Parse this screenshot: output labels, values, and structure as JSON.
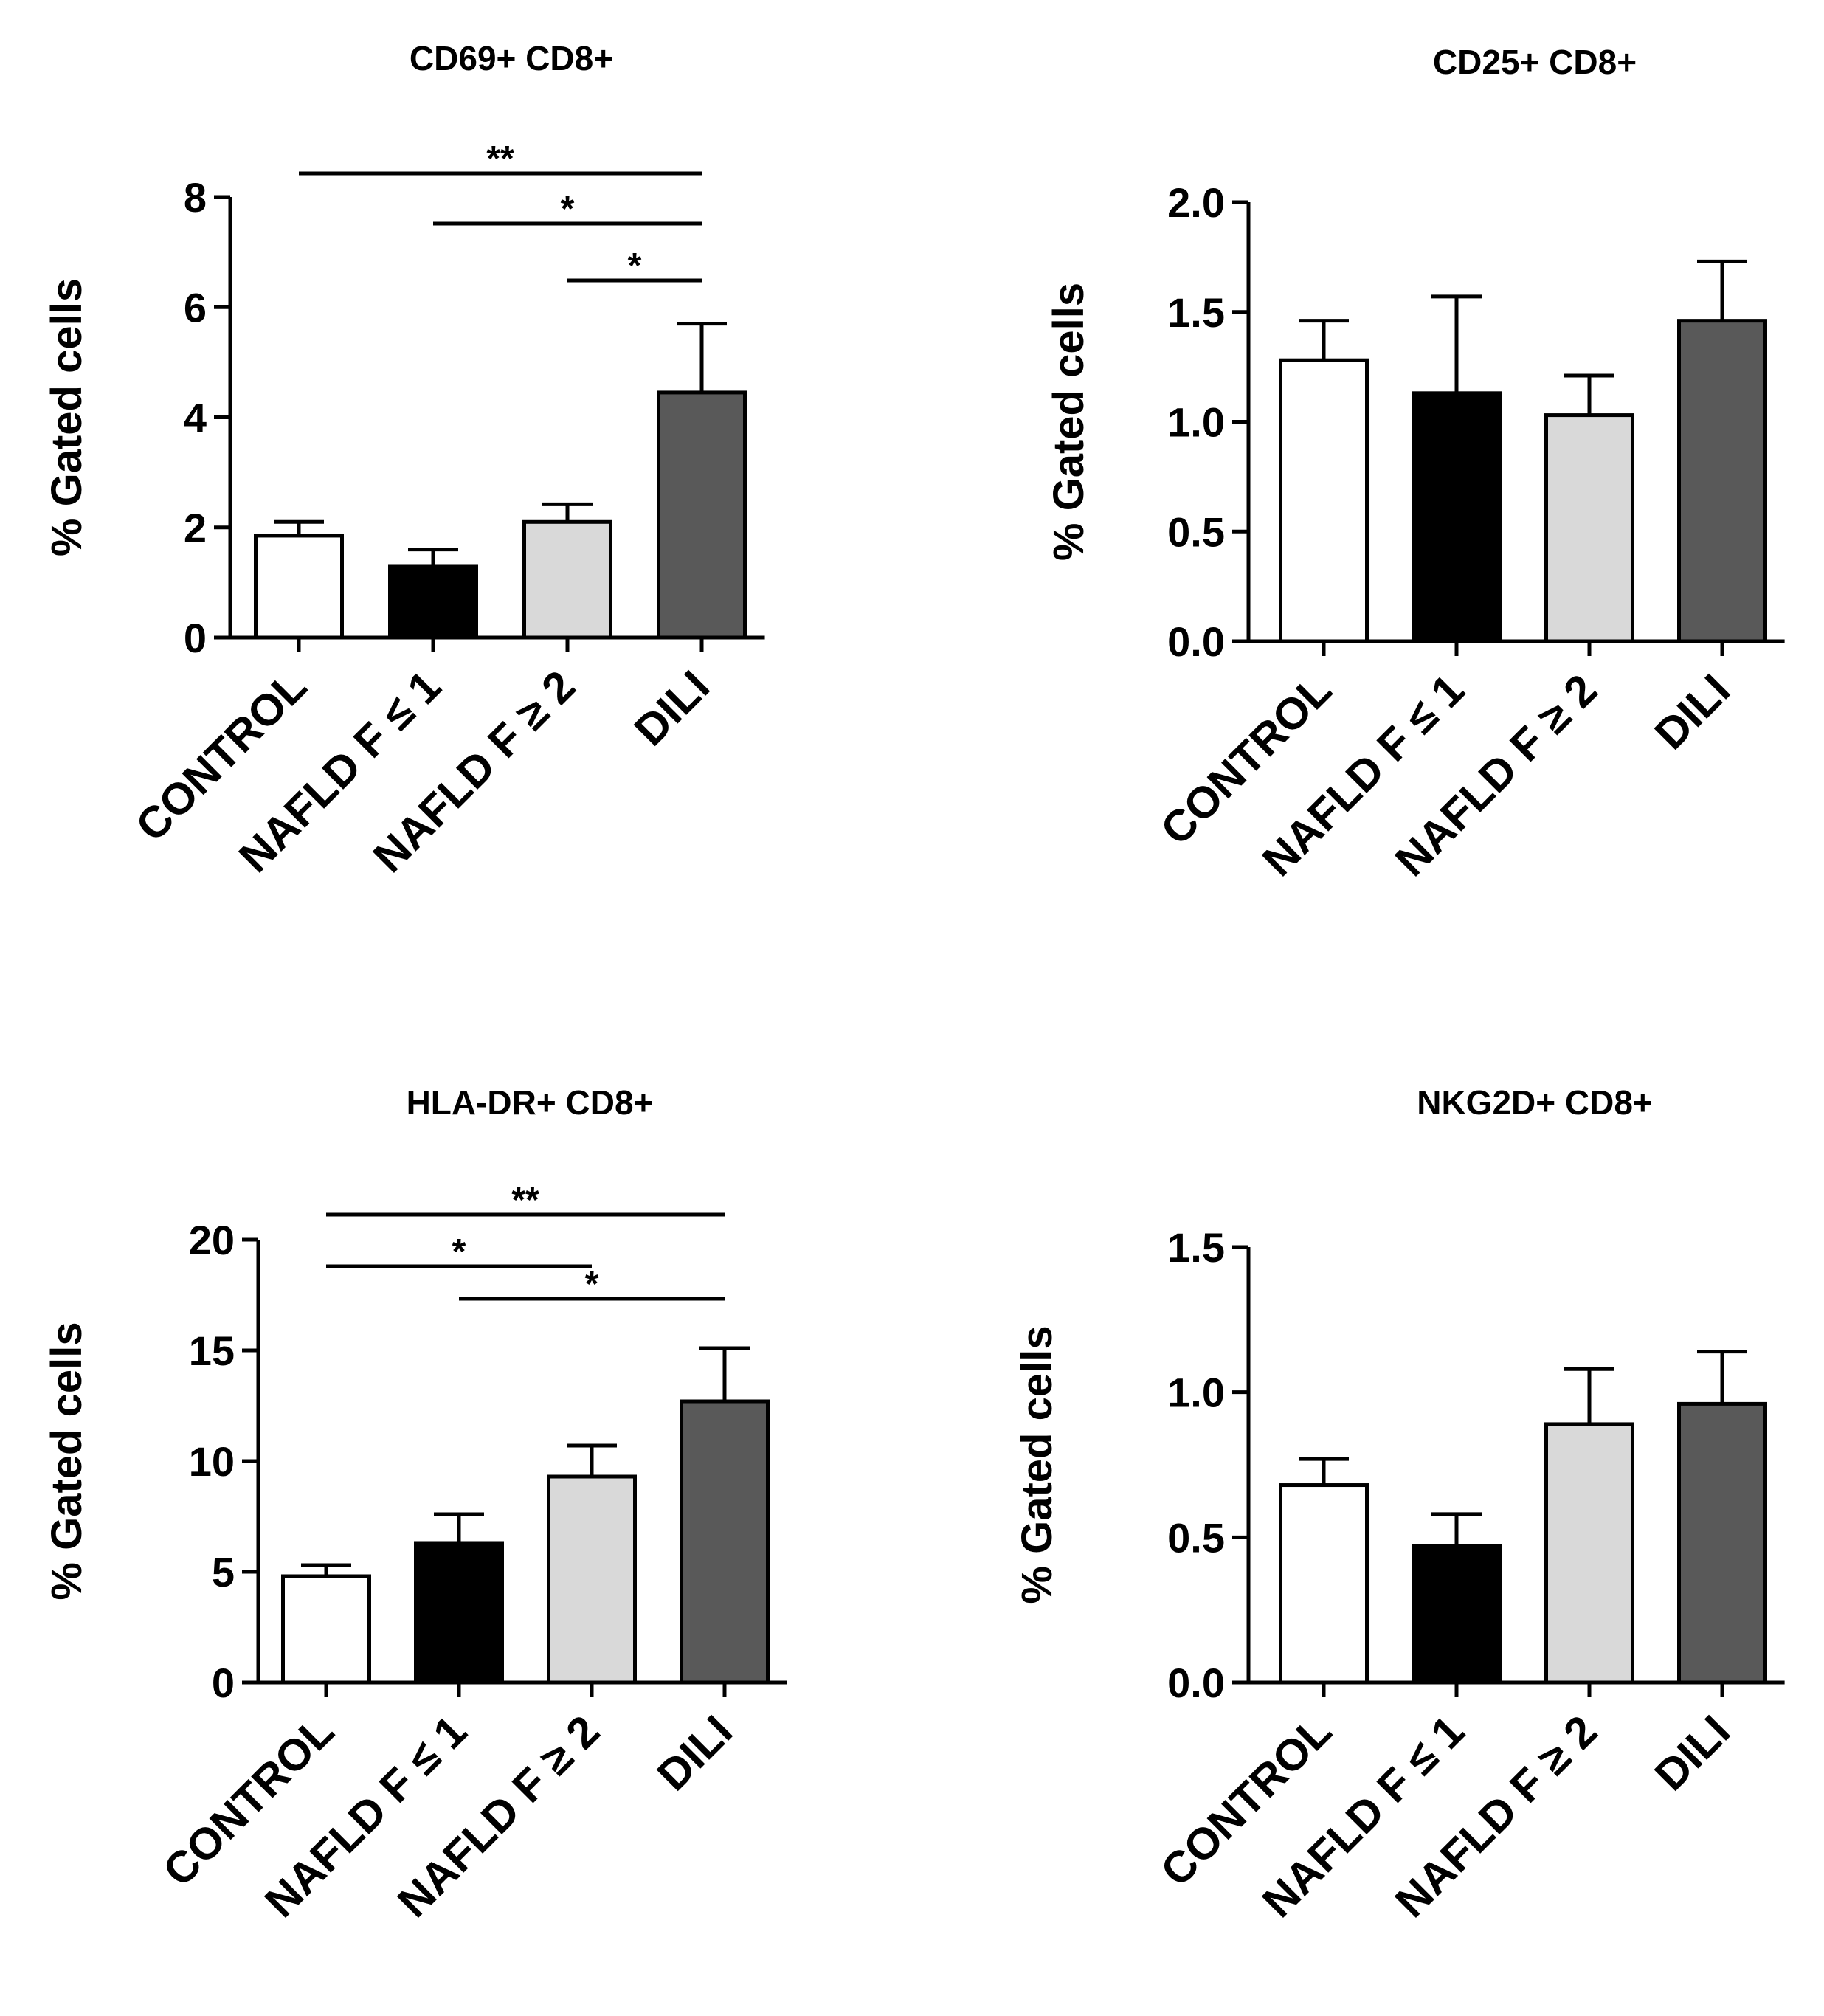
{
  "chart_data": [
    {
      "type": "bar",
      "title": "CD69+ CD8+",
      "ylabel": "% Gated cells",
      "xlabel": "",
      "categories": [
        "CONTROL",
        "NAFLD F ≤ 1",
        "NAFLD F ≥ 2",
        "DILI"
      ],
      "values": [
        1.85,
        1.3,
        2.1,
        4.45
      ],
      "errors": [
        0.25,
        0.3,
        0.32,
        1.25
      ],
      "bar_colors": [
        "#ffffff",
        "#000000",
        "#d9d9d9",
        "#595959"
      ],
      "ylim": [
        0,
        8
      ],
      "yticks": [
        0,
        2,
        4,
        6,
        8
      ],
      "tick_labels": [
        "0",
        "2",
        "4",
        "6",
        "8"
      ],
      "significance": [
        {
          "from": 0,
          "to": 3,
          "label": "**"
        },
        {
          "from": 1,
          "to": 3,
          "label": "*"
        },
        {
          "from": 2,
          "to": 3,
          "label": "*"
        }
      ]
    },
    {
      "type": "bar",
      "title": "CD25+ CD8+",
      "ylabel": "% Gated cells",
      "xlabel": "",
      "categories": [
        "CONTROL",
        "NAFLD F ≤ 1",
        "NAFLD F ≥ 2",
        "DILI"
      ],
      "values": [
        1.28,
        1.13,
        1.03,
        1.46
      ],
      "errors": [
        0.18,
        0.44,
        0.18,
        0.27
      ],
      "bar_colors": [
        "#ffffff",
        "#000000",
        "#d9d9d9",
        "#595959"
      ],
      "ylim": [
        0,
        2
      ],
      "yticks": [
        0,
        0.5,
        1,
        1.5,
        2
      ],
      "tick_labels": [
        "0.0",
        "0.5",
        "1.0",
        "1.5",
        "2.0"
      ],
      "significance": []
    },
    {
      "type": "bar",
      "title": "HLA-DR+ CD8+",
      "ylabel": "% Gated cells",
      "xlabel": "",
      "categories": [
        "CONTROL",
        "NAFLD F ≤ 1",
        "NAFLD F ≥ 2",
        "DILI"
      ],
      "values": [
        4.8,
        6.3,
        9.3,
        12.7
      ],
      "errors": [
        0.5,
        1.3,
        1.4,
        2.4
      ],
      "bar_colors": [
        "#ffffff",
        "#000000",
        "#d9d9d9",
        "#595959"
      ],
      "ylim": [
        0,
        20
      ],
      "yticks": [
        0,
        5,
        10,
        15,
        20
      ],
      "tick_labels": [
        "0",
        "5",
        "10",
        "15",
        "20"
      ],
      "significance": [
        {
          "from": 0,
          "to": 3,
          "label": "**"
        },
        {
          "from": 0,
          "to": 2,
          "label": "*"
        },
        {
          "from": 1,
          "to": 3,
          "label": "*"
        }
      ]
    },
    {
      "type": "bar",
      "title": "NKG2D+ CD8+",
      "ylabel": "% Gated cells",
      "xlabel": "",
      "categories": [
        "CONTROL",
        "NAFLD F ≤ 1",
        "NAFLD F ≥ 2",
        "DILI"
      ],
      "values": [
        0.68,
        0.47,
        0.89,
        0.96
      ],
      "errors": [
        0.09,
        0.11,
        0.19,
        0.18
      ],
      "bar_colors": [
        "#ffffff",
        "#000000",
        "#d9d9d9",
        "#595959"
      ],
      "ylim": [
        0,
        1.5
      ],
      "yticks": [
        0,
        0.5,
        1,
        1.5
      ],
      "tick_labels": [
        "0.0",
        "0.5",
        "1.0",
        "1.5"
      ],
      "significance": []
    }
  ]
}
